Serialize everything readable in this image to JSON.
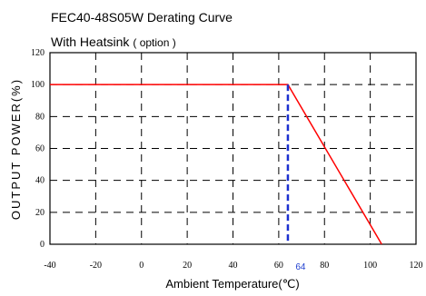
{
  "chart_data": {
    "type": "line",
    "title_line1": "FEC40-48S05W Derating Curve",
    "title_line2": "With Heatsink",
    "title_line2_suffix": "( option )",
    "xlabel": "Ambient Temperature(℃)",
    "ylabel": "OUTPUT POWER(%)",
    "xlim": [
      -40,
      120
    ],
    "ylim": [
      0,
      120
    ],
    "x_ticks": [
      -40,
      -20,
      0,
      20,
      40,
      60,
      80,
      100,
      120
    ],
    "y_ticks": [
      0,
      20,
      40,
      60,
      80,
      100,
      120
    ],
    "grid": true,
    "series": [
      {
        "x": [
          -40,
          64,
          105
        ],
        "y": [
          100,
          100,
          0
        ],
        "color": "#ff0000"
      }
    ],
    "marker": {
      "x": 64,
      "label": "64",
      "color": "#1a2fd0"
    }
  }
}
